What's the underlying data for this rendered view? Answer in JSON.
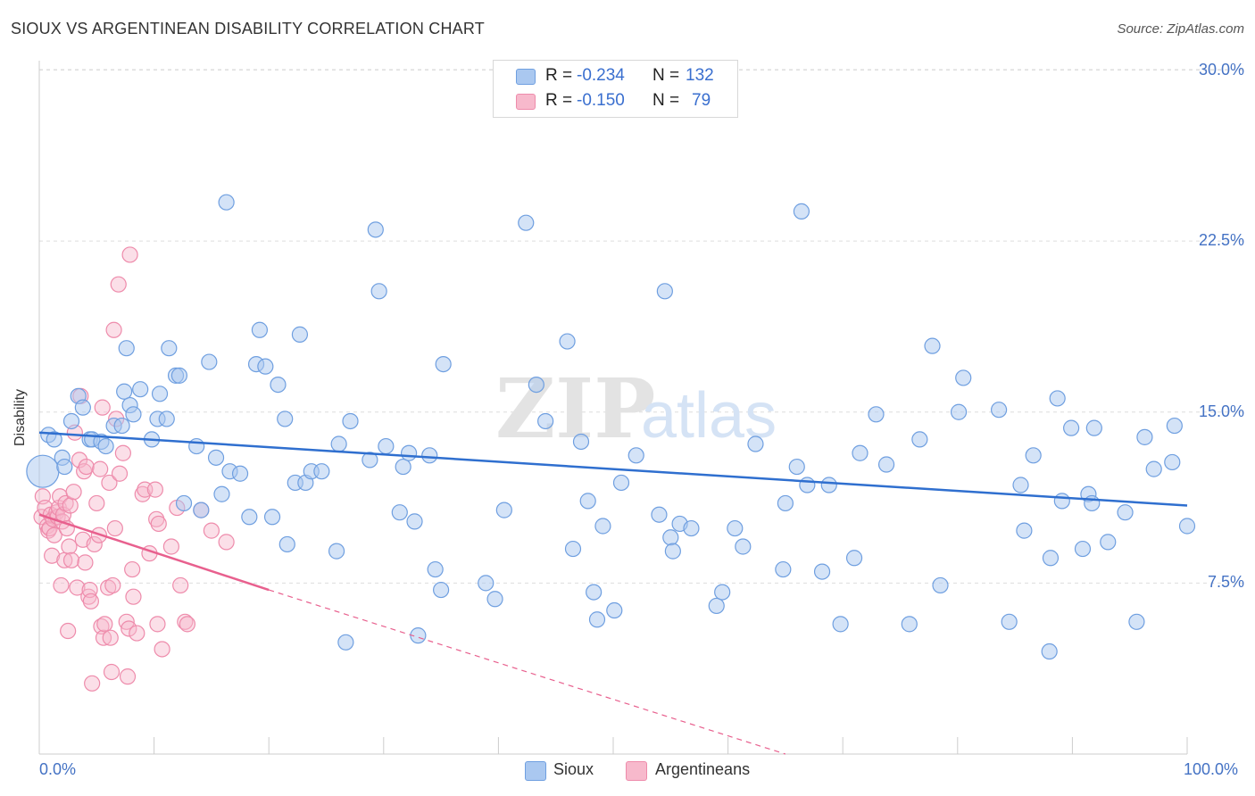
{
  "title": "SIOUX VS ARGENTINEAN DISABILITY CORRELATION CHART",
  "source": "Source: ZipAtlas.com",
  "watermark": {
    "zip": "ZIP",
    "atlas": "atlas"
  },
  "legend": {
    "rows": [
      {
        "r_label": "R =",
        "r_value": "-0.234",
        "n_label": "N =",
        "n_value": "132"
      },
      {
        "r_label": "R =",
        "r_value": "-0.150",
        "n_label": "N =",
        "n_value": "79"
      }
    ]
  },
  "colors": {
    "sioux_fill": "#aac8f0",
    "sioux_stroke": "#6f9fe0",
    "sioux_line": "#2f6fcf",
    "arg_fill": "#f7b9cc",
    "arg_stroke": "#ee8bab",
    "arg_line": "#e8608e",
    "tick_text": "#4472c4",
    "grid": "#dddddd"
  },
  "chart_data": {
    "type": "scatter",
    "title": "SIOUX VS ARGENTINEAN DISABILITY CORRELATION CHART",
    "xlabel": "",
    "ylabel": "Disability",
    "xlim": [
      0,
      100
    ],
    "ylim": [
      0,
      31
    ],
    "x_tick_labels": [
      "0.0%",
      "100.0%"
    ],
    "y_ticks": [
      7.5,
      15.0,
      22.5,
      30.0
    ],
    "y_tick_labels": [
      "7.5%",
      "15.0%",
      "22.5%",
      "30.0%"
    ],
    "grid": true,
    "legend_position": "top-center",
    "series": [
      {
        "name": "Sioux",
        "r": -0.234,
        "n": 132,
        "trend": {
          "x": [
            0,
            100
          ],
          "y": [
            14.1,
            10.9
          ]
        },
        "points": [
          [
            0.3,
            12.4
          ],
          [
            0.8,
            14.0
          ],
          [
            1.3,
            13.8
          ],
          [
            2.0,
            13.0
          ],
          [
            2.2,
            12.6
          ],
          [
            2.8,
            14.6
          ],
          [
            3.4,
            15.7
          ],
          [
            3.8,
            15.2
          ],
          [
            4.4,
            13.8
          ],
          [
            4.6,
            13.8
          ],
          [
            5.4,
            13.7
          ],
          [
            5.8,
            13.5
          ],
          [
            6.5,
            14.4
          ],
          [
            7.2,
            14.4
          ],
          [
            7.6,
            17.8
          ],
          [
            7.4,
            15.9
          ],
          [
            7.9,
            15.3
          ],
          [
            8.2,
            14.9
          ],
          [
            8.8,
            16.0
          ],
          [
            9.8,
            13.8
          ],
          [
            10.3,
            14.7
          ],
          [
            10.5,
            15.8
          ],
          [
            11.1,
            14.7
          ],
          [
            11.3,
            17.8
          ],
          [
            11.9,
            16.6
          ],
          [
            12.2,
            16.6
          ],
          [
            12.6,
            11.0
          ],
          [
            13.7,
            13.5
          ],
          [
            14.1,
            10.7
          ],
          [
            14.8,
            17.2
          ],
          [
            15.4,
            13.0
          ],
          [
            15.9,
            11.4
          ],
          [
            16.3,
            24.2
          ],
          [
            16.6,
            12.4
          ],
          [
            17.5,
            12.3
          ],
          [
            18.3,
            10.4
          ],
          [
            18.9,
            17.1
          ],
          [
            19.2,
            18.6
          ],
          [
            19.7,
            17.0
          ],
          [
            20.3,
            10.4
          ],
          [
            20.8,
            16.2
          ],
          [
            21.4,
            14.7
          ],
          [
            21.6,
            9.2
          ],
          [
            22.3,
            11.9
          ],
          [
            22.7,
            18.4
          ],
          [
            23.2,
            11.9
          ],
          [
            23.7,
            12.4
          ],
          [
            24.6,
            12.4
          ],
          [
            25.9,
            8.9
          ],
          [
            26.1,
            13.6
          ],
          [
            26.7,
            4.9
          ],
          [
            27.1,
            14.6
          ],
          [
            28.8,
            12.9
          ],
          [
            29.3,
            23.0
          ],
          [
            29.6,
            20.3
          ],
          [
            30.2,
            13.5
          ],
          [
            31.4,
            10.6
          ],
          [
            31.7,
            12.6
          ],
          [
            32.2,
            13.2
          ],
          [
            32.7,
            10.2
          ],
          [
            33.0,
            5.2
          ],
          [
            34.0,
            13.1
          ],
          [
            34.5,
            8.1
          ],
          [
            35.0,
            7.2
          ],
          [
            35.2,
            17.1
          ],
          [
            38.9,
            7.5
          ],
          [
            39.7,
            6.8
          ],
          [
            40.5,
            10.7
          ],
          [
            42.4,
            23.3
          ],
          [
            43.3,
            16.2
          ],
          [
            44.1,
            14.6
          ],
          [
            46.0,
            18.1
          ],
          [
            46.5,
            9.0
          ],
          [
            47.2,
            13.7
          ],
          [
            47.8,
            11.1
          ],
          [
            48.3,
            7.1
          ],
          [
            48.6,
            5.9
          ],
          [
            49.1,
            10.0
          ],
          [
            50.1,
            6.3
          ],
          [
            50.7,
            11.9
          ],
          [
            52.0,
            13.1
          ],
          [
            54.0,
            10.5
          ],
          [
            54.5,
            20.3
          ],
          [
            55.0,
            9.5
          ],
          [
            55.2,
            8.9
          ],
          [
            55.8,
            10.1
          ],
          [
            56.8,
            9.9
          ],
          [
            59.0,
            6.5
          ],
          [
            59.5,
            7.1
          ],
          [
            60.6,
            9.9
          ],
          [
            61.3,
            9.1
          ],
          [
            62.4,
            13.6
          ],
          [
            64.8,
            8.1
          ],
          [
            65.0,
            11.0
          ],
          [
            66.0,
            12.6
          ],
          [
            66.4,
            23.8
          ],
          [
            66.9,
            11.8
          ],
          [
            68.2,
            8.0
          ],
          [
            68.8,
            11.8
          ],
          [
            69.8,
            5.7
          ],
          [
            71.0,
            8.6
          ],
          [
            71.5,
            13.2
          ],
          [
            72.9,
            14.9
          ],
          [
            73.8,
            12.7
          ],
          [
            75.8,
            5.7
          ],
          [
            76.7,
            13.8
          ],
          [
            77.8,
            17.9
          ],
          [
            78.5,
            7.4
          ],
          [
            80.1,
            15.0
          ],
          [
            80.5,
            16.5
          ],
          [
            83.6,
            15.1
          ],
          [
            84.5,
            5.8
          ],
          [
            85.5,
            11.8
          ],
          [
            85.8,
            9.8
          ],
          [
            86.6,
            13.1
          ],
          [
            88.0,
            4.5
          ],
          [
            88.1,
            8.6
          ],
          [
            88.7,
            15.6
          ],
          [
            89.1,
            11.1
          ],
          [
            89.9,
            14.3
          ],
          [
            90.9,
            9.0
          ],
          [
            91.4,
            11.4
          ],
          [
            91.7,
            11.0
          ],
          [
            91.9,
            14.3
          ],
          [
            93.1,
            9.3
          ],
          [
            94.6,
            10.6
          ],
          [
            95.6,
            5.8
          ],
          [
            96.3,
            13.9
          ],
          [
            97.1,
            12.5
          ],
          [
            98.7,
            12.8
          ],
          [
            98.9,
            14.4
          ],
          [
            100.0,
            10.0
          ]
        ]
      },
      {
        "name": "Argentineans",
        "r": -0.15,
        "n": 79,
        "trend": {
          "x": [
            0,
            20
          ],
          "y": [
            10.5,
            7.2
          ]
        },
        "trend_dashed": {
          "x": [
            20,
            65
          ],
          "y": [
            7.2,
            0
          ]
        },
        "points": [
          [
            0.2,
            10.4
          ],
          [
            0.3,
            11.3
          ],
          [
            0.5,
            10.8
          ],
          [
            0.7,
            10.0
          ],
          [
            0.8,
            9.8
          ],
          [
            0.9,
            9.9
          ],
          [
            1.0,
            10.5
          ],
          [
            1.2,
            10.3
          ],
          [
            1.1,
            8.7
          ],
          [
            1.3,
            9.6
          ],
          [
            1.5,
            10.6
          ],
          [
            1.6,
            10.4
          ],
          [
            1.7,
            10.8
          ],
          [
            1.8,
            11.3
          ],
          [
            1.9,
            7.4
          ],
          [
            2.0,
            10.2
          ],
          [
            2.1,
            10.5
          ],
          [
            2.2,
            8.5
          ],
          [
            2.3,
            11.0
          ],
          [
            2.4,
            9.9
          ],
          [
            2.5,
            5.4
          ],
          [
            2.6,
            9.1
          ],
          [
            2.7,
            10.9
          ],
          [
            2.8,
            8.5
          ],
          [
            3.0,
            11.5
          ],
          [
            3.1,
            14.1
          ],
          [
            3.3,
            7.3
          ],
          [
            3.5,
            12.9
          ],
          [
            3.6,
            15.7
          ],
          [
            3.8,
            9.4
          ],
          [
            3.9,
            12.4
          ],
          [
            4.0,
            8.4
          ],
          [
            4.1,
            12.6
          ],
          [
            4.3,
            6.9
          ],
          [
            4.4,
            7.2
          ],
          [
            4.6,
            3.1
          ],
          [
            4.5,
            6.7
          ],
          [
            4.8,
            9.2
          ],
          [
            5.0,
            11.0
          ],
          [
            5.2,
            9.6
          ],
          [
            5.3,
            12.5
          ],
          [
            5.4,
            5.6
          ],
          [
            5.5,
            15.2
          ],
          [
            5.6,
            5.1
          ],
          [
            5.7,
            5.7
          ],
          [
            6.0,
            7.3
          ],
          [
            6.1,
            11.9
          ],
          [
            6.2,
            5.1
          ],
          [
            6.3,
            3.6
          ],
          [
            6.4,
            7.4
          ],
          [
            6.5,
            18.6
          ],
          [
            6.6,
            9.9
          ],
          [
            6.7,
            14.7
          ],
          [
            6.9,
            20.6
          ],
          [
            7.0,
            12.3
          ],
          [
            7.3,
            13.2
          ],
          [
            7.6,
            5.8
          ],
          [
            7.7,
            3.4
          ],
          [
            7.8,
            5.5
          ],
          [
            7.9,
            21.9
          ],
          [
            8.1,
            8.1
          ],
          [
            8.2,
            6.9
          ],
          [
            8.5,
            5.3
          ],
          [
            9.0,
            11.4
          ],
          [
            9.2,
            11.6
          ],
          [
            9.6,
            8.8
          ],
          [
            10.1,
            11.6
          ],
          [
            10.2,
            10.3
          ],
          [
            10.4,
            10.1
          ],
          [
            10.3,
            5.7
          ],
          [
            10.7,
            4.6
          ],
          [
            11.5,
            9.1
          ],
          [
            12.0,
            10.8
          ],
          [
            12.3,
            7.4
          ],
          [
            12.7,
            5.8
          ],
          [
            12.9,
            5.7
          ],
          [
            14.1,
            10.7
          ],
          [
            15.0,
            9.8
          ],
          [
            16.3,
            9.3
          ]
        ]
      }
    ]
  }
}
